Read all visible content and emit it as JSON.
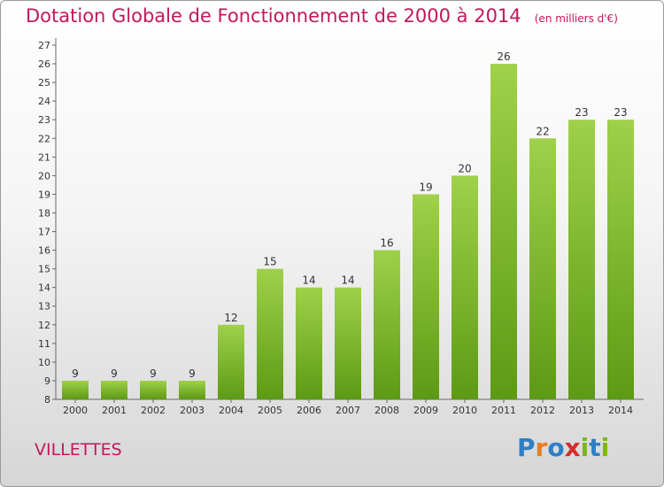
{
  "title": "Dotation Globale de Fonctionnement de 2000 à 2014",
  "unit": "(en milliers d'€)",
  "commune": "VILLETTES",
  "logo": {
    "letters": [
      "P",
      "r",
      "o",
      "x",
      "i",
      "t",
      "i"
    ],
    "colors": [
      "#2e7fc4",
      "#e67e22",
      "#2e7fc4",
      "#d62c2c",
      "#7cb518",
      "#2e7fc4",
      "#7cb518"
    ]
  },
  "colors": {
    "bar_top": "#9fd14a",
    "bar_bottom": "#5d9a14",
    "title": "#c2185b"
  },
  "chart_data": {
    "type": "bar",
    "categories": [
      "2000",
      "2001",
      "2002",
      "2003",
      "2004",
      "2005",
      "2006",
      "2007",
      "2008",
      "2009",
      "2010",
      "2011",
      "2012",
      "2013",
      "2014"
    ],
    "values": [
      9,
      9,
      9,
      9,
      12,
      15,
      14,
      14,
      16,
      19,
      20,
      26,
      22,
      23,
      23
    ],
    "ylim": [
      8,
      27
    ],
    "yticks": [
      8,
      9,
      10,
      11,
      12,
      13,
      14,
      15,
      16,
      17,
      18,
      19,
      20,
      21,
      22,
      23,
      24,
      25,
      26,
      27
    ],
    "grid": false,
    "legend": "none"
  }
}
